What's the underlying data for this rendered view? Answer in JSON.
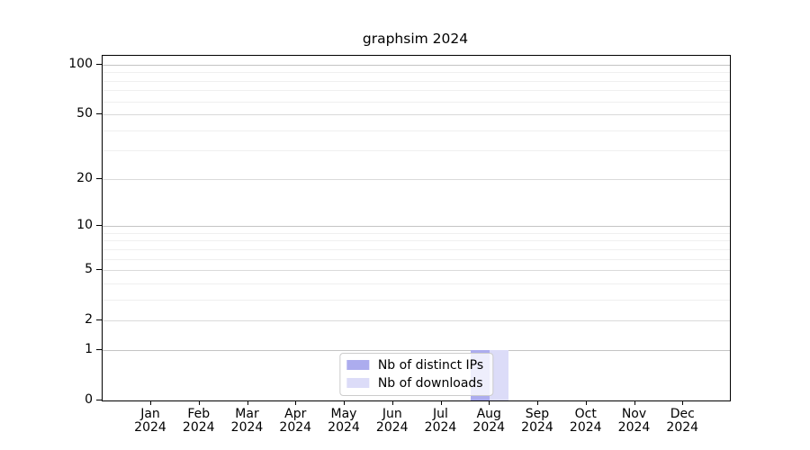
{
  "chart_data": {
    "type": "bar",
    "title": "graphsim 2024",
    "categories": [
      "Jan 2024",
      "Feb 2024",
      "Mar 2024",
      "Apr 2024",
      "May 2024",
      "Jun 2024",
      "Jul 2024",
      "Aug 2024",
      "Sep 2024",
      "Oct 2024",
      "Nov 2024",
      "Dec 2024"
    ],
    "series": [
      {
        "name": "Nb of distinct IPs",
        "color": "#acacee",
        "values": [
          0,
          0,
          0,
          0,
          0,
          0,
          0,
          1,
          0,
          0,
          0,
          0
        ]
      },
      {
        "name": "Nb of downloads",
        "color": "#dcdcf8",
        "values": [
          0,
          0,
          0,
          0,
          0,
          0,
          0,
          1,
          0,
          0,
          0,
          0
        ]
      }
    ],
    "yscale": "log1p",
    "ylim": [
      0,
      100
    ],
    "yticks_major": [
      100,
      50,
      20,
      10,
      5,
      2,
      1,
      0
    ],
    "yticks_minor": [
      90,
      80,
      70,
      60,
      40,
      30,
      9,
      8,
      7,
      6,
      4,
      3
    ],
    "grid": true,
    "legend_position": "lower center"
  }
}
